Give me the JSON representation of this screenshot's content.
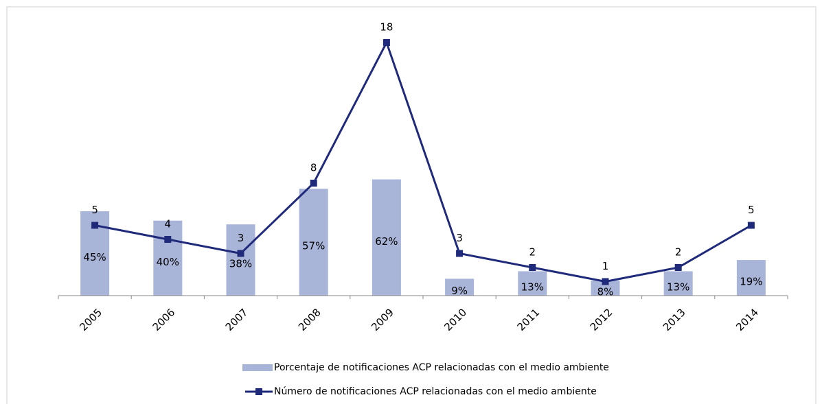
{
  "chart_data": {
    "type": "bar+line",
    "categories": [
      "2005",
      "2006",
      "2007",
      "2008",
      "2009",
      "2010",
      "2011",
      "2012",
      "2013",
      "2014"
    ],
    "series": [
      {
        "name": "Porcentaje de notificaciones ACP relacionadas con el medio ambiente",
        "type": "bar",
        "color": "#a9b4d9",
        "values": [
          45,
          40,
          38,
          57,
          62,
          9,
          13,
          8,
          13,
          19
        ],
        "value_labels": [
          "45%",
          "40%",
          "38%",
          "57%",
          "62%",
          "9%",
          "13%",
          "8%",
          "13%",
          "19%"
        ]
      },
      {
        "name": "Número de notificaciones ACP relacionadas con el medio ambiente",
        "type": "line",
        "axis": "y2",
        "color": "#1f2a7a",
        "values": [
          5,
          4,
          3,
          8,
          18,
          3,
          2,
          1,
          2,
          5
        ]
      }
    ],
    "ylim": [
      0,
      150
    ],
    "y2lim": [
      0,
      20
    ],
    "legend": "bottom"
  }
}
